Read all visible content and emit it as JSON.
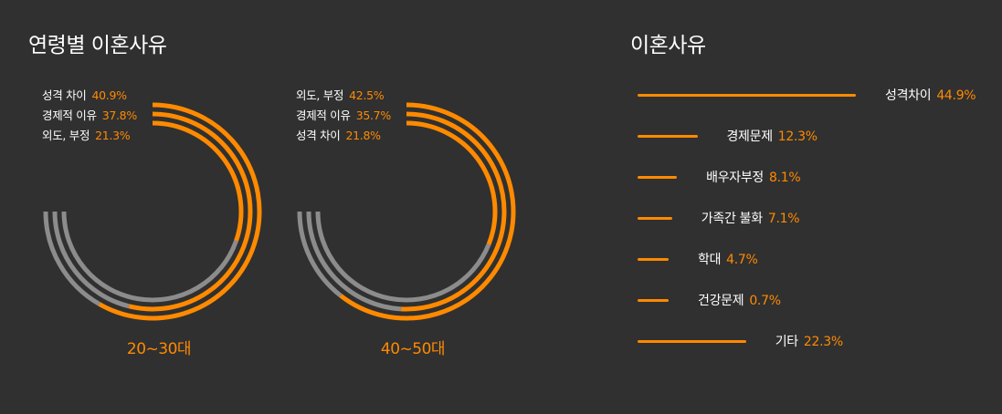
{
  "titles": {
    "left": "연령별 이혼사유",
    "right": "이혼사유"
  },
  "colors": {
    "accent": "#ff8a00",
    "track": "#8c8c8c",
    "background": "#303030"
  },
  "chart_data": [
    {
      "type": "pie",
      "variant": "concentric-arc",
      "group": "20~30대",
      "series": [
        {
          "name": "성격 차이",
          "value": 40.9,
          "display": "40.9%"
        },
        {
          "name": "경제적 이유",
          "value": 37.8,
          "display": "37.8%"
        },
        {
          "name": "외도, 부정",
          "value": 21.3,
          "display": "21.3%"
        }
      ]
    },
    {
      "type": "pie",
      "variant": "concentric-arc",
      "group": "40~50대",
      "series": [
        {
          "name": "외도, 부정",
          "value": 42.5,
          "display": "42.5%"
        },
        {
          "name": "경제적 이유",
          "value": 35.7,
          "display": "35.7%"
        },
        {
          "name": "성격 차이",
          "value": 21.8,
          "display": "21.8%"
        }
      ]
    },
    {
      "type": "bar",
      "orientation": "horizontal",
      "categories": [
        "성격차이",
        "경제문제",
        "배우자부정",
        "가족간 불화",
        "학대",
        "건강문제",
        "기타"
      ],
      "values": [
        44.9,
        12.3,
        8.1,
        7.1,
        4.7,
        0.7,
        22.3
      ],
      "display": [
        "44.9%",
        "12.3%",
        "8.1%",
        "7.1%",
        "4.7%",
        "0.7%",
        "22.3%"
      ]
    }
  ]
}
